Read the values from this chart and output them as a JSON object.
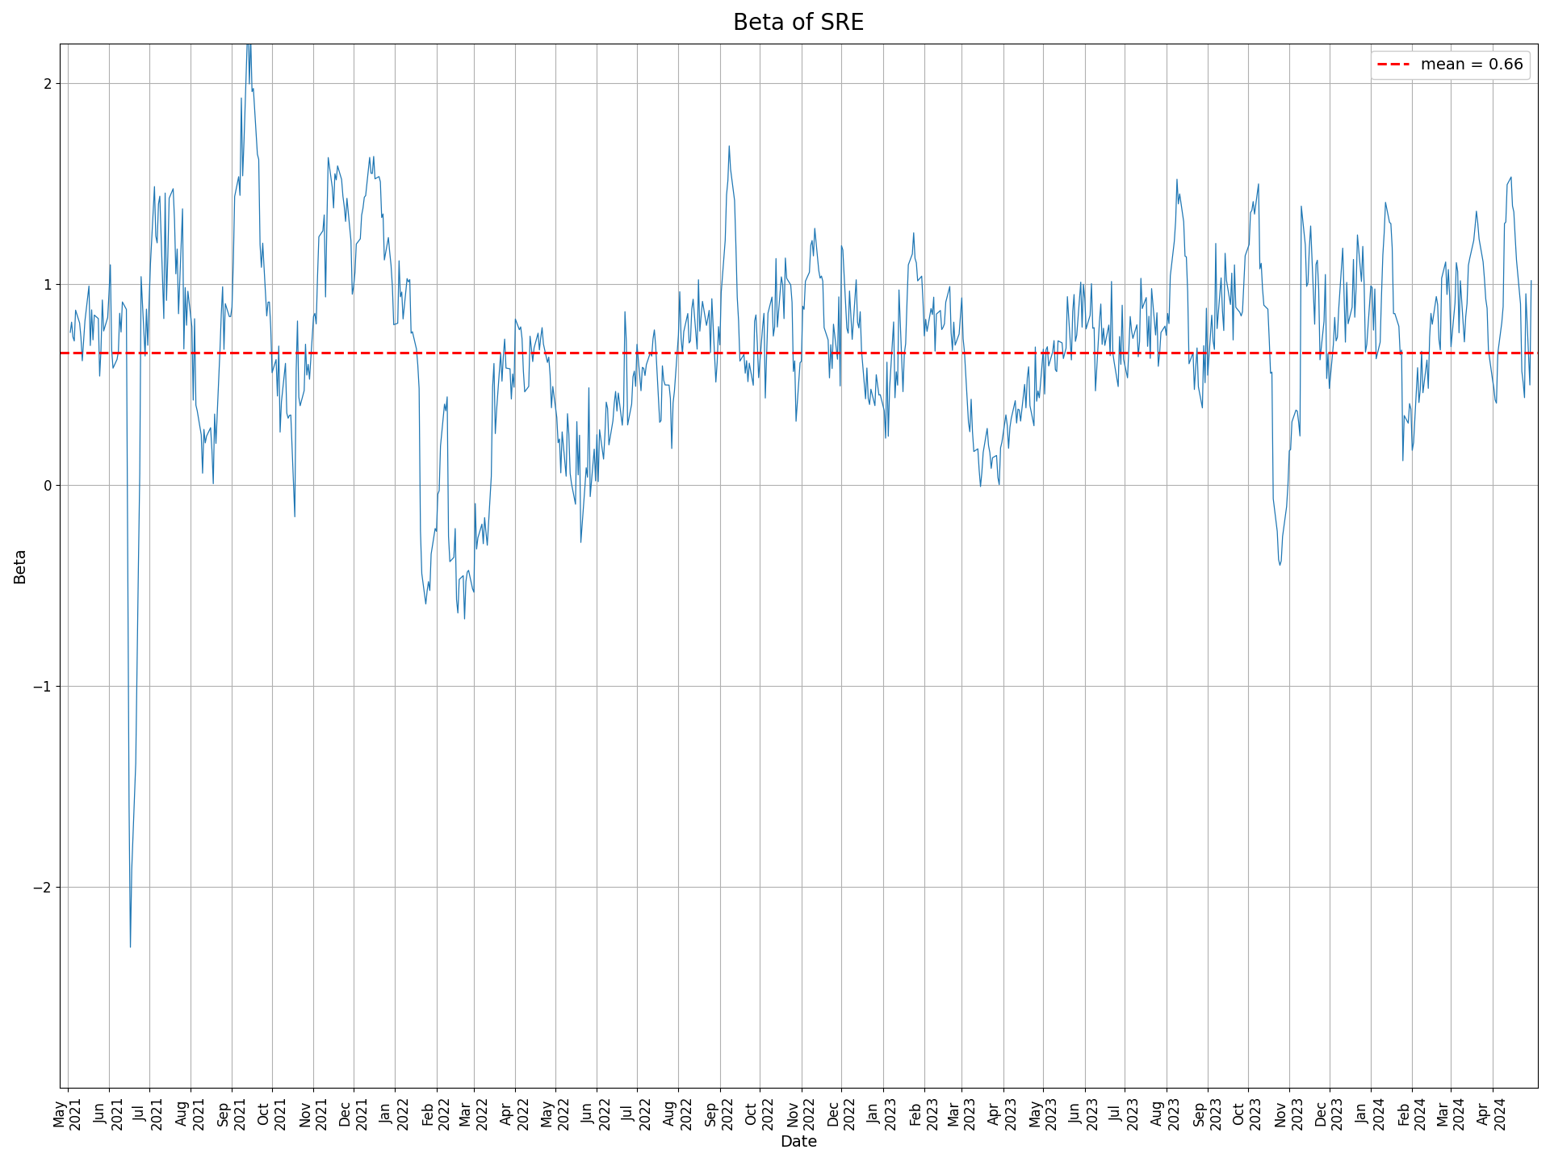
{
  "title": "Beta of SRE",
  "xlabel": "Date",
  "ylabel": "Beta",
  "mean_value": 0.66,
  "mean_label": "mean = 0.66",
  "line_color": "#1f77b4",
  "mean_line_color": "red",
  "background_color": "white",
  "grid_color": "#b0b0b0",
  "ylim": [
    -3.0,
    2.2
  ],
  "yticks": [
    -2,
    -1,
    0,
    1,
    2
  ],
  "title_fontsize": 20,
  "label_fontsize": 14,
  "tick_fontsize": 12
}
